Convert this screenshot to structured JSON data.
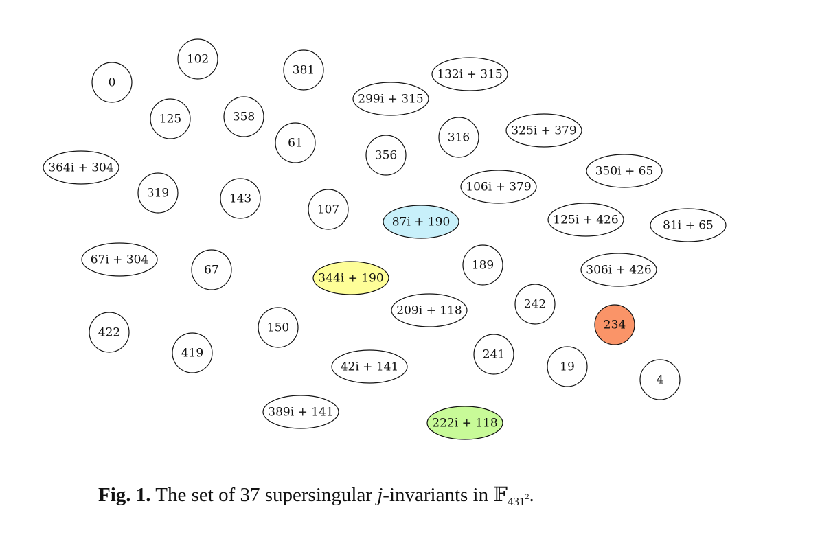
{
  "nodes": [
    {
      "label": "0",
      "color": "#ffffff"
    },
    {
      "label": "102",
      "color": "#ffffff"
    },
    {
      "label": "381",
      "color": "#ffffff"
    },
    {
      "label": "132i + 315",
      "color": "#ffffff"
    },
    {
      "label": "299i + 315",
      "color": "#ffffff"
    },
    {
      "label": "125",
      "color": "#ffffff"
    },
    {
      "label": "358",
      "color": "#ffffff"
    },
    {
      "label": "61",
      "color": "#ffffff"
    },
    {
      "label": "356",
      "color": "#ffffff"
    },
    {
      "label": "316",
      "color": "#ffffff"
    },
    {
      "label": "325i + 379",
      "color": "#ffffff"
    },
    {
      "label": "364i + 304",
      "color": "#ffffff"
    },
    {
      "label": "350i + 65",
      "color": "#ffffff"
    },
    {
      "label": "106i + 379",
      "color": "#ffffff"
    },
    {
      "label": "319",
      "color": "#ffffff"
    },
    {
      "label": "143",
      "color": "#ffffff"
    },
    {
      "label": "107",
      "color": "#ffffff"
    },
    {
      "label": "87i + 190",
      "color": "#c8f0fa"
    },
    {
      "label": "125i + 426",
      "color": "#ffffff"
    },
    {
      "label": "81i + 65",
      "color": "#ffffff"
    },
    {
      "label": "67i + 304",
      "color": "#ffffff"
    },
    {
      "label": "67",
      "color": "#ffffff"
    },
    {
      "label": "344i + 190",
      "color": "#fefe98"
    },
    {
      "label": "189",
      "color": "#ffffff"
    },
    {
      "label": "306i + 426",
      "color": "#ffffff"
    },
    {
      "label": "242",
      "color": "#ffffff"
    },
    {
      "label": "209i + 118",
      "color": "#ffffff"
    },
    {
      "label": "234",
      "color": "#fa9468"
    },
    {
      "label": "422",
      "color": "#ffffff"
    },
    {
      "label": "150",
      "color": "#ffffff"
    },
    {
      "label": "419",
      "color": "#ffffff"
    },
    {
      "label": "241",
      "color": "#ffffff"
    },
    {
      "label": "42i + 141",
      "color": "#ffffff"
    },
    {
      "label": "19",
      "color": "#ffffff"
    },
    {
      "label": "4",
      "color": "#ffffff"
    },
    {
      "label": "389i + 141",
      "color": "#ffffff"
    },
    {
      "label": "222i + 118",
      "color": "#c8fa98"
    }
  ],
  "caption": {
    "fig_label": "Fig. 1.",
    "text_before": "The set of 37 supersingular",
    "math_j": "j",
    "text_after": "-invariants in",
    "field_symbol": "𝔽",
    "field_subscript": "431",
    "field_exponent": "2",
    "end_punct": "."
  }
}
